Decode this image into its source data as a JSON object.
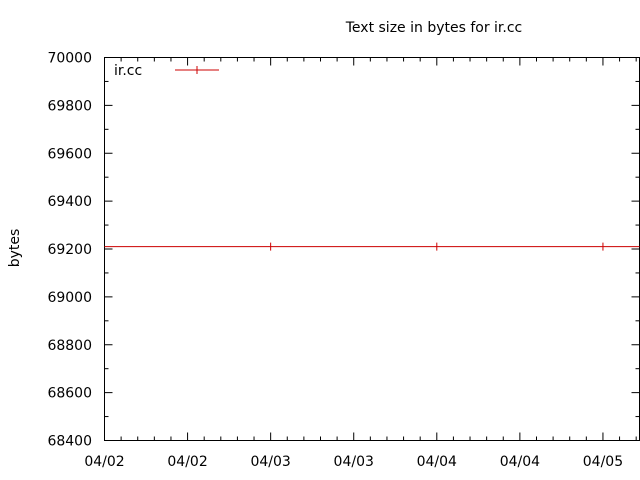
{
  "chart_data": {
    "type": "line",
    "title": "Text size in bytes for ir.cc",
    "xlabel": "",
    "ylabel": "bytes",
    "x_tick_labels": [
      "04/02",
      "04/02",
      "04/03",
      "04/03",
      "04/04",
      "04/04",
      "04/05"
    ],
    "y_ticks": [
      68400,
      68600,
      68800,
      69000,
      69200,
      69400,
      69600,
      69800,
      70000
    ],
    "ylim": [
      68400,
      70000
    ],
    "xlim": [
      0,
      3.22
    ],
    "x_tick_positions": [
      0,
      0.5,
      1,
      1.5,
      2,
      2.5,
      3
    ],
    "grid": false,
    "legend_position": "top-left",
    "series": [
      {
        "name": "ir.cc",
        "color": "#cc0000",
        "x": [
          0,
          1,
          2,
          3,
          3.22
        ],
        "values": [
          69210,
          69210,
          69210,
          69210,
          69210
        ],
        "markers_at": [
          1,
          2,
          3
        ]
      }
    ]
  }
}
